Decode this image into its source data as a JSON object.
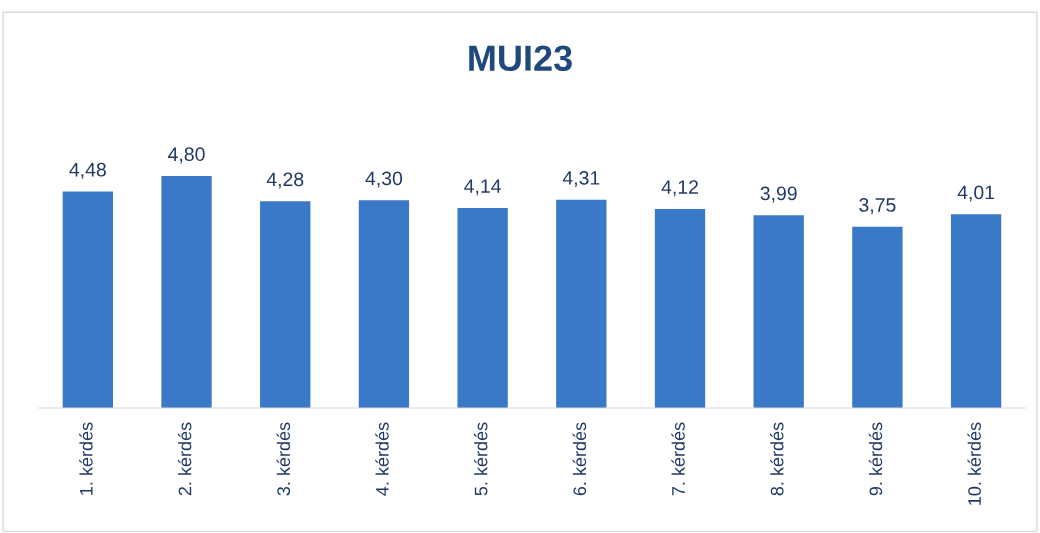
{
  "chart_data": {
    "type": "bar",
    "title": "MUI23",
    "categories": [
      "1. kérdés",
      "2. kérdés",
      "3. kérdés",
      "4. kérdés",
      "5. kérdés",
      "6. kérdés",
      "7. kérdés",
      "8. kérdés",
      "9. kérdés",
      "10. kérdés"
    ],
    "values": [
      4.48,
      4.8,
      4.28,
      4.3,
      4.14,
      4.31,
      4.12,
      3.99,
      3.75,
      4.01
    ],
    "value_labels": [
      "4,48",
      "4,80",
      "4,28",
      "4,30",
      "4,14",
      "4,31",
      "4,12",
      "3,99",
      "3,75",
      "4,01"
    ],
    "color": "#3a78c8"
  }
}
